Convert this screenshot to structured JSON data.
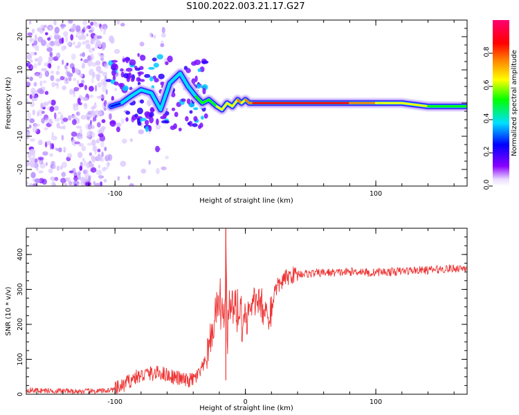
{
  "title": "S100.2022.003.21.17.G27",
  "chart_data": [
    {
      "type": "heatmap",
      "title": "S100.2022.003.21.17.G27",
      "xlabel": "Height of straight line (km)",
      "ylabel": "Frequency (Hz)",
      "xlim": [
        -168,
        170
      ],
      "ylim": [
        -25,
        25
      ],
      "xticks": [
        -100,
        100
      ],
      "xtick_labels": [
        "-100",
        "100"
      ],
      "yticks": [
        -20,
        -10,
        0,
        10,
        20
      ],
      "ytick_labels": [
        "-20",
        "-10",
        "0",
        "10",
        "20"
      ],
      "colorbar": {
        "label": "Normalized spectral amplitude",
        "range": [
          0,
          1
        ],
        "ticks": [
          0.0,
          0.2,
          0.4,
          0.6,
          0.8
        ],
        "tick_labels": [
          "0.0",
          "0.2",
          "0.4",
          "0.6",
          "0.8"
        ],
        "colormap": [
          "#ffffff",
          "#8a00ff",
          "#0000ff",
          "#00e0ff",
          "#00ff00",
          "#ffff00",
          "#ff8000",
          "#ff0000",
          "#ff0070"
        ]
      },
      "ridge": {
        "x": [
          -103,
          -95,
          -88,
          -80,
          -72,
          -65,
          -58,
          -50,
          -44,
          -38,
          -33,
          -28,
          -22,
          -18,
          -14,
          -10,
          -6,
          -3,
          0,
          3,
          6,
          10,
          20,
          40,
          60,
          80,
          100,
          120,
          140,
          160,
          170
        ],
        "y": [
          -1,
          0,
          2,
          4,
          3,
          -2,
          6,
          9,
          5,
          2,
          0,
          1,
          -1,
          -2,
          0,
          -1,
          1,
          0,
          1,
          0,
          0,
          0,
          0,
          0,
          0,
          0,
          0,
          0,
          -1,
          -1,
          -1
        ],
        "amplitude": [
          0.35,
          0.4,
          0.45,
          0.45,
          0.5,
          0.45,
          0.45,
          0.45,
          0.5,
          0.55,
          0.55,
          0.55,
          0.7,
          0.75,
          0.7,
          0.7,
          0.8,
          0.75,
          0.8,
          0.85,
          0.9,
          0.95,
          0.95,
          0.95,
          0.9,
          0.85,
          0.75,
          0.65,
          0.6,
          0.55,
          0.5
        ]
      },
      "grid": false
    },
    {
      "type": "line",
      "xlabel": "Height of straight line (km)",
      "ylabel": "SNR (10 * v/v)",
      "xlim": [
        -168,
        170
      ],
      "ylim": [
        0,
        475
      ],
      "xticks": [
        -100,
        0,
        100
      ],
      "xtick_labels": [
        "-100",
        "0",
        "100"
      ],
      "yticks": [
        0,
        100,
        200,
        300,
        400
      ],
      "ytick_labels": [
        "0",
        "100",
        "200",
        "300",
        "400"
      ],
      "color": "#ee3333",
      "grid": false,
      "series": [
        {
          "x": [
            -168,
            -150,
            -130,
            -110,
            -100,
            -95,
            -90,
            -85,
            -80,
            -75,
            -70,
            -65,
            -60,
            -55,
            -50,
            -45,
            -40,
            -35,
            -30,
            -27,
            -25,
            -22,
            -20,
            -18,
            -16,
            -15,
            -14,
            -12,
            -10,
            -8,
            -5,
            -3,
            0,
            3,
            5,
            8,
            10,
            12,
            15,
            18,
            20,
            22,
            25,
            30,
            35,
            40,
            50,
            60,
            70,
            80,
            90,
            95,
            100,
            110,
            120,
            130,
            140,
            150,
            160,
            170
          ],
          "y": [
            12,
            10,
            8,
            9,
            14,
            22,
            35,
            48,
            52,
            60,
            58,
            62,
            55,
            50,
            44,
            38,
            42,
            60,
            95,
            140,
            190,
            230,
            260,
            220,
            180,
            470,
            150,
            230,
            250,
            220,
            240,
            210,
            230,
            240,
            250,
            270,
            260,
            240,
            235,
            200,
            260,
            290,
            310,
            330,
            340,
            345,
            345,
            348,
            348,
            350,
            352,
            345,
            350,
            350,
            352,
            355,
            355,
            358,
            360,
            362
          ]
        }
      ]
    }
  ]
}
